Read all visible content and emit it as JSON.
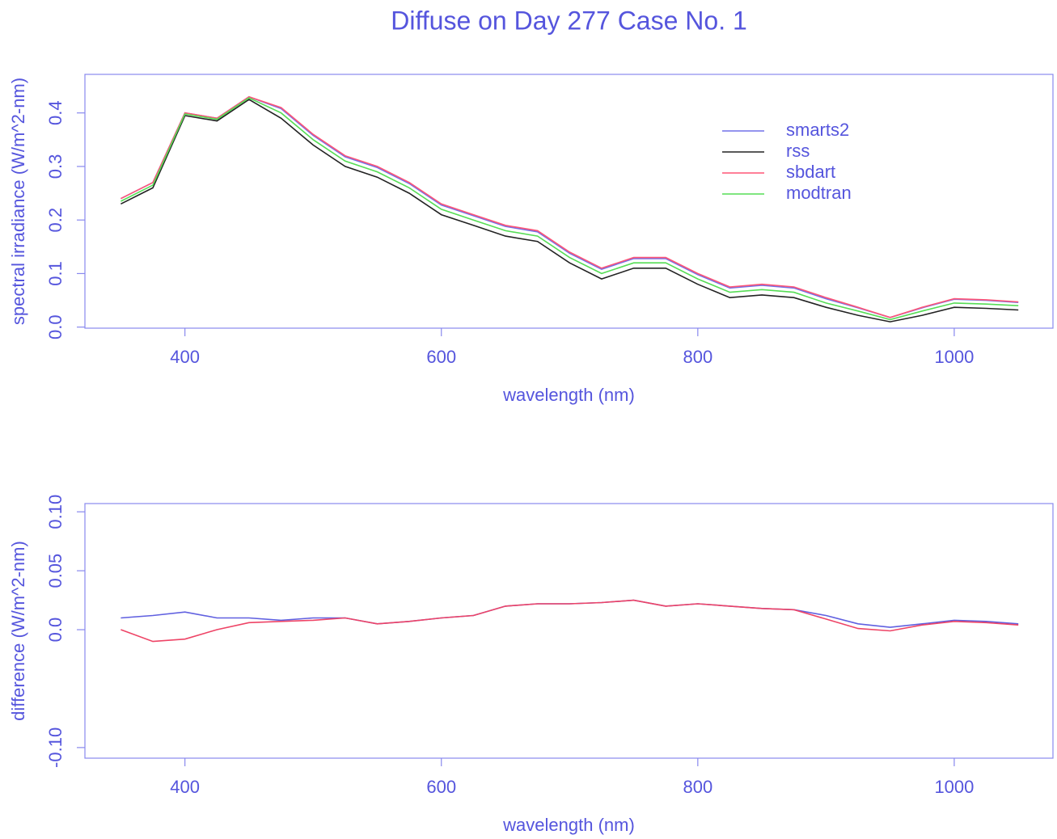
{
  "chart_data": [
    {
      "type": "line",
      "title": "Diffuse on Day 277 Case No. 1",
      "xlabel": "wavelength (nm)",
      "ylabel": "spectral irradiance (W/m^2-nm)",
      "x": [
        350,
        375,
        400,
        425,
        450,
        475,
        500,
        525,
        550,
        575,
        600,
        625,
        650,
        675,
        700,
        725,
        750,
        775,
        800,
        825,
        850,
        875,
        900,
        925,
        950,
        975,
        1000,
        1025,
        1050
      ],
      "xlim": [
        322,
        1077
      ],
      "xticks": [
        400,
        600,
        800,
        1000
      ],
      "ylim": [
        -0.002,
        0.472
      ],
      "yticks": [
        {
          "value": 0,
          "label": "0.0"
        },
        0.1,
        0.2,
        0.3,
        0.4
      ],
      "legend": "top-right",
      "series": [
        {
          "name": "smarts2",
          "color": "#7070e8",
          "values": [
            0.24,
            0.27,
            0.4,
            0.39,
            0.43,
            0.408,
            0.358,
            0.318,
            0.298,
            0.268,
            0.228,
            0.208,
            0.188,
            0.178,
            0.138,
            0.108,
            0.128,
            0.128,
            0.098,
            0.073,
            0.078,
            0.073,
            0.053,
            0.036,
            0.018,
            0.036,
            0.052,
            0.05,
            0.046
          ]
        },
        {
          "name": "rss",
          "color": "#222222",
          "values": [
            0.23,
            0.26,
            0.395,
            0.385,
            0.425,
            0.39,
            0.34,
            0.3,
            0.28,
            0.25,
            0.21,
            0.19,
            0.17,
            0.16,
            0.12,
            0.09,
            0.11,
            0.11,
            0.08,
            0.055,
            0.06,
            0.055,
            0.037,
            0.022,
            0.01,
            0.022,
            0.037,
            0.035,
            0.032
          ]
        },
        {
          "name": "sbdart",
          "color": "#ff5577",
          "values": [
            0.24,
            0.27,
            0.4,
            0.39,
            0.43,
            0.41,
            0.36,
            0.32,
            0.3,
            0.27,
            0.23,
            0.21,
            0.19,
            0.18,
            0.14,
            0.11,
            0.13,
            0.13,
            0.1,
            0.075,
            0.08,
            0.075,
            0.055,
            0.037,
            0.018,
            0.037,
            0.053,
            0.051,
            0.047
          ]
        },
        {
          "name": "modtran",
          "color": "#55dd55",
          "values": [
            0.235,
            0.265,
            0.398,
            0.388,
            0.428,
            0.4,
            0.35,
            0.31,
            0.29,
            0.26,
            0.22,
            0.2,
            0.18,
            0.17,
            0.13,
            0.1,
            0.12,
            0.12,
            0.09,
            0.065,
            0.07,
            0.065,
            0.045,
            0.03,
            0.014,
            0.03,
            0.045,
            0.043,
            0.04
          ]
        }
      ]
    },
    {
      "type": "line",
      "xlabel": "wavelength (nm)",
      "ylabel": "difference (W/m^2-nm)",
      "x": [
        350,
        375,
        400,
        425,
        450,
        475,
        500,
        525,
        550,
        575,
        600,
        625,
        650,
        675,
        700,
        725,
        750,
        775,
        800,
        825,
        850,
        875,
        900,
        925,
        950,
        975,
        1000,
        1025,
        1050
      ],
      "xlim": [
        322,
        1077
      ],
      "xticks": [
        400,
        600,
        800,
        1000
      ],
      "ylim": [
        -0.109,
        0.107
      ],
      "yticks": [
        {
          "value": -0.1,
          "label": "-0.10"
        },
        {
          "value": 0,
          "label": "0.0"
        },
        0.05,
        {
          "value": 0.1,
          "label": "0.10"
        }
      ],
      "series": [
        {
          "color": "#6060e0",
          "values": [
            0.01,
            0.012,
            0.015,
            0.01,
            0.01,
            0.008,
            0.01,
            0.01,
            0.005,
            0.007,
            0.01,
            0.012,
            0.02,
            0.022,
            0.022,
            0.023,
            0.025,
            0.02,
            0.022,
            0.02,
            0.018,
            0.017,
            0.012,
            0.005,
            0.002,
            0.005,
            0.008,
            0.007,
            0.005
          ]
        },
        {
          "color": "#ee4466",
          "values": [
            0.0,
            -0.01,
            -0.008,
            0.0,
            0.006,
            0.007,
            0.008,
            0.01,
            0.005,
            0.007,
            0.01,
            0.012,
            0.02,
            0.022,
            0.022,
            0.023,
            0.025,
            0.02,
            0.022,
            0.02,
            0.018,
            0.017,
            0.009,
            0.001,
            -0.001,
            0.004,
            0.007,
            0.006,
            0.004
          ]
        }
      ]
    }
  ]
}
